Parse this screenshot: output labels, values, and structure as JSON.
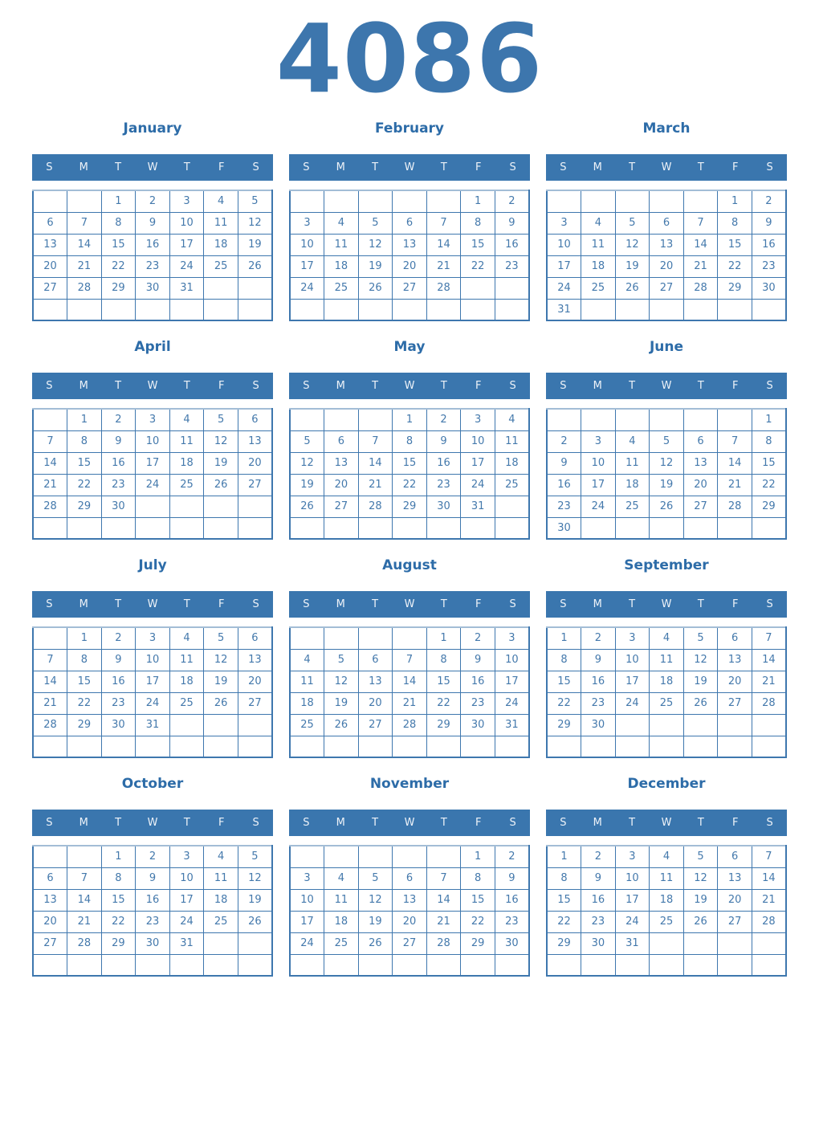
{
  "year": "4086",
  "weekday_headers": [
    "S",
    "M",
    "T",
    "W",
    "T",
    "F",
    "S"
  ],
  "colors": {
    "year_text": "#3d76ad",
    "month_title": "#2d6ca8",
    "header_bg": "#3a76ae",
    "header_text": "#edf2f8",
    "date_text": "#4479ac",
    "grid_border": "#3e77ae",
    "grid_border_light": "#a3bdd6",
    "background": "#ffffff"
  },
  "months": [
    {
      "name": "January",
      "weeks": [
        [
          "",
          "",
          "1",
          "2",
          "3",
          "4",
          "5"
        ],
        [
          "6",
          "7",
          "8",
          "9",
          "10",
          "11",
          "12"
        ],
        [
          "13",
          "14",
          "15",
          "16",
          "17",
          "18",
          "19"
        ],
        [
          "20",
          "21",
          "22",
          "23",
          "24",
          "25",
          "26"
        ],
        [
          "27",
          "28",
          "29",
          "30",
          "31",
          "",
          ""
        ],
        [
          "",
          "",
          "",
          "",
          "",
          "",
          ""
        ]
      ]
    },
    {
      "name": "February",
      "weeks": [
        [
          "",
          "",
          "",
          "",
          "",
          "1",
          "2"
        ],
        [
          "3",
          "4",
          "5",
          "6",
          "7",
          "8",
          "9"
        ],
        [
          "10",
          "11",
          "12",
          "13",
          "14",
          "15",
          "16"
        ],
        [
          "17",
          "18",
          "19",
          "20",
          "21",
          "22",
          "23"
        ],
        [
          "24",
          "25",
          "26",
          "27",
          "28",
          "",
          ""
        ],
        [
          "",
          "",
          "",
          "",
          "",
          "",
          ""
        ]
      ]
    },
    {
      "name": "March",
      "weeks": [
        [
          "",
          "",
          "",
          "",
          "",
          "1",
          "2"
        ],
        [
          "3",
          "4",
          "5",
          "6",
          "7",
          "8",
          "9"
        ],
        [
          "10",
          "11",
          "12",
          "13",
          "14",
          "15",
          "16"
        ],
        [
          "17",
          "18",
          "19",
          "20",
          "21",
          "22",
          "23"
        ],
        [
          "24",
          "25",
          "26",
          "27",
          "28",
          "29",
          "30"
        ],
        [
          "31",
          "",
          "",
          "",
          "",
          "",
          ""
        ]
      ]
    },
    {
      "name": "April",
      "weeks": [
        [
          "",
          "1",
          "2",
          "3",
          "4",
          "5",
          "6"
        ],
        [
          "7",
          "8",
          "9",
          "10",
          "11",
          "12",
          "13"
        ],
        [
          "14",
          "15",
          "16",
          "17",
          "18",
          "19",
          "20"
        ],
        [
          "21",
          "22",
          "23",
          "24",
          "25",
          "26",
          "27"
        ],
        [
          "28",
          "29",
          "30",
          "",
          "",
          "",
          ""
        ],
        [
          "",
          "",
          "",
          "",
          "",
          "",
          ""
        ]
      ]
    },
    {
      "name": "May",
      "weeks": [
        [
          "",
          "",
          "",
          "1",
          "2",
          "3",
          "4"
        ],
        [
          "5",
          "6",
          "7",
          "8",
          "9",
          "10",
          "11"
        ],
        [
          "12",
          "13",
          "14",
          "15",
          "16",
          "17",
          "18"
        ],
        [
          "19",
          "20",
          "21",
          "22",
          "23",
          "24",
          "25"
        ],
        [
          "26",
          "27",
          "28",
          "29",
          "30",
          "31",
          ""
        ],
        [
          "",
          "",
          "",
          "",
          "",
          "",
          ""
        ]
      ]
    },
    {
      "name": "June",
      "weeks": [
        [
          "",
          "",
          "",
          "",
          "",
          "",
          "1"
        ],
        [
          "2",
          "3",
          "4",
          "5",
          "6",
          "7",
          "8"
        ],
        [
          "9",
          "10",
          "11",
          "12",
          "13",
          "14",
          "15"
        ],
        [
          "16",
          "17",
          "18",
          "19",
          "20",
          "21",
          "22"
        ],
        [
          "23",
          "24",
          "25",
          "26",
          "27",
          "28",
          "29"
        ],
        [
          "30",
          "",
          "",
          "",
          "",
          "",
          ""
        ]
      ]
    },
    {
      "name": "July",
      "weeks": [
        [
          "",
          "1",
          "2",
          "3",
          "4",
          "5",
          "6"
        ],
        [
          "7",
          "8",
          "9",
          "10",
          "11",
          "12",
          "13"
        ],
        [
          "14",
          "15",
          "16",
          "17",
          "18",
          "19",
          "20"
        ],
        [
          "21",
          "22",
          "23",
          "24",
          "25",
          "26",
          "27"
        ],
        [
          "28",
          "29",
          "30",
          "31",
          "",
          "",
          ""
        ],
        [
          "",
          "",
          "",
          "",
          "",
          "",
          ""
        ]
      ]
    },
    {
      "name": "August",
      "weeks": [
        [
          "",
          "",
          "",
          "",
          "1",
          "2",
          "3"
        ],
        [
          "4",
          "5",
          "6",
          "7",
          "8",
          "9",
          "10"
        ],
        [
          "11",
          "12",
          "13",
          "14",
          "15",
          "16",
          "17"
        ],
        [
          "18",
          "19",
          "20",
          "21",
          "22",
          "23",
          "24"
        ],
        [
          "25",
          "26",
          "27",
          "28",
          "29",
          "30",
          "31"
        ],
        [
          "",
          "",
          "",
          "",
          "",
          "",
          ""
        ]
      ]
    },
    {
      "name": "September",
      "weeks": [
        [
          "1",
          "2",
          "3",
          "4",
          "5",
          "6",
          "7"
        ],
        [
          "8",
          "9",
          "10",
          "11",
          "12",
          "13",
          "14"
        ],
        [
          "15",
          "16",
          "17",
          "18",
          "19",
          "20",
          "21"
        ],
        [
          "22",
          "23",
          "24",
          "25",
          "26",
          "27",
          "28"
        ],
        [
          "29",
          "30",
          "",
          "",
          "",
          "",
          ""
        ],
        [
          "",
          "",
          "",
          "",
          "",
          "",
          ""
        ]
      ]
    },
    {
      "name": "October",
      "weeks": [
        [
          "",
          "",
          "1",
          "2",
          "3",
          "4",
          "5"
        ],
        [
          "6",
          "7",
          "8",
          "9",
          "10",
          "11",
          "12"
        ],
        [
          "13",
          "14",
          "15",
          "16",
          "17",
          "18",
          "19"
        ],
        [
          "20",
          "21",
          "22",
          "23",
          "24",
          "25",
          "26"
        ],
        [
          "27",
          "28",
          "29",
          "30",
          "31",
          "",
          ""
        ],
        [
          "",
          "",
          "",
          "",
          "",
          "",
          ""
        ]
      ]
    },
    {
      "name": "November",
      "weeks": [
        [
          "",
          "",
          "",
          "",
          "",
          "1",
          "2"
        ],
        [
          "3",
          "4",
          "5",
          "6",
          "7",
          "8",
          "9"
        ],
        [
          "10",
          "11",
          "12",
          "13",
          "14",
          "15",
          "16"
        ],
        [
          "17",
          "18",
          "19",
          "20",
          "21",
          "22",
          "23"
        ],
        [
          "24",
          "25",
          "26",
          "27",
          "28",
          "29",
          "30"
        ],
        [
          "",
          "",
          "",
          "",
          "",
          "",
          ""
        ]
      ]
    },
    {
      "name": "December",
      "weeks": [
        [
          "1",
          "2",
          "3",
          "4",
          "5",
          "6",
          "7"
        ],
        [
          "8",
          "9",
          "10",
          "11",
          "12",
          "13",
          "14"
        ],
        [
          "15",
          "16",
          "17",
          "18",
          "19",
          "20",
          "21"
        ],
        [
          "22",
          "23",
          "24",
          "25",
          "26",
          "27",
          "28"
        ],
        [
          "29",
          "30",
          "31",
          "",
          "",
          "",
          ""
        ],
        [
          "",
          "",
          "",
          "",
          "",
          "",
          ""
        ]
      ]
    }
  ]
}
